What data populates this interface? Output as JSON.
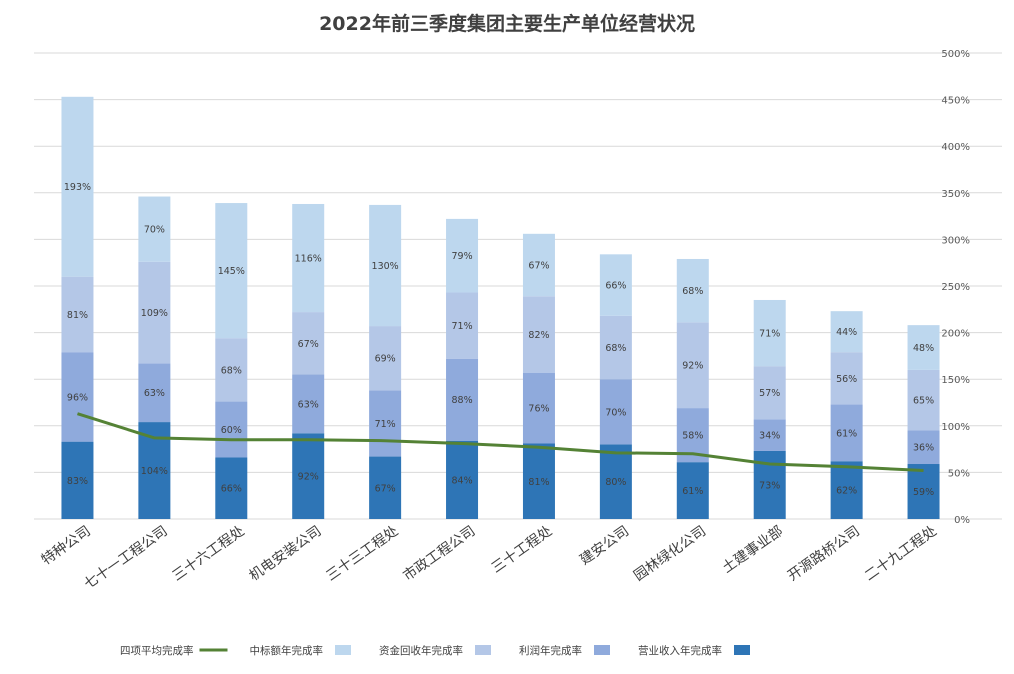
{
  "chart_data": {
    "type": "bar",
    "stacked": true,
    "title": "2022年前三季度集团主要生产单位经营状况",
    "categories": [
      "二十九工程处",
      "开源路桥公司",
      "土建事业部",
      "园林绿化公司",
      "建安公司",
      "三十工程处",
      "市政工程公司",
      "三十三工程处",
      "机电安装公司",
      "三十六工程处",
      "七十一工程公司",
      "特种公司"
    ],
    "series": [
      {
        "name": "营业收入年完成率",
        "type": "bar",
        "color": "#2e75b6",
        "values": [
          59,
          62,
          73,
          61,
          80,
          81,
          84,
          67,
          92,
          66,
          104,
          83
        ]
      },
      {
        "name": "利润年完成率",
        "type": "bar",
        "color": "#8faadc",
        "values": [
          36,
          61,
          34,
          58,
          70,
          76,
          88,
          71,
          63,
          60,
          63,
          96
        ]
      },
      {
        "name": "资金回收年完成率",
        "type": "bar",
        "color": "#b4c7e7",
        "values": [
          65,
          56,
          57,
          92,
          68,
          82,
          71,
          69,
          67,
          68,
          109,
          81
        ]
      },
      {
        "name": "中标额年完成率",
        "type": "bar",
        "color": "#bdd7ee",
        "values": [
          48,
          44,
          71,
          68,
          66,
          67,
          79,
          130,
          116,
          145,
          70,
          193
        ]
      },
      {
        "name": "四项平均完成率",
        "type": "line",
        "color": "#548235",
        "values": [
          52,
          56,
          59,
          70,
          71,
          77,
          81,
          84,
          85,
          85,
          87,
          113
        ]
      }
    ],
    "yaxis": {
      "min": 0,
      "max": 500,
      "step": 50,
      "suffix": "%",
      "position": "right"
    },
    "grid": true,
    "legend": "bottom",
    "mirrored": true
  }
}
